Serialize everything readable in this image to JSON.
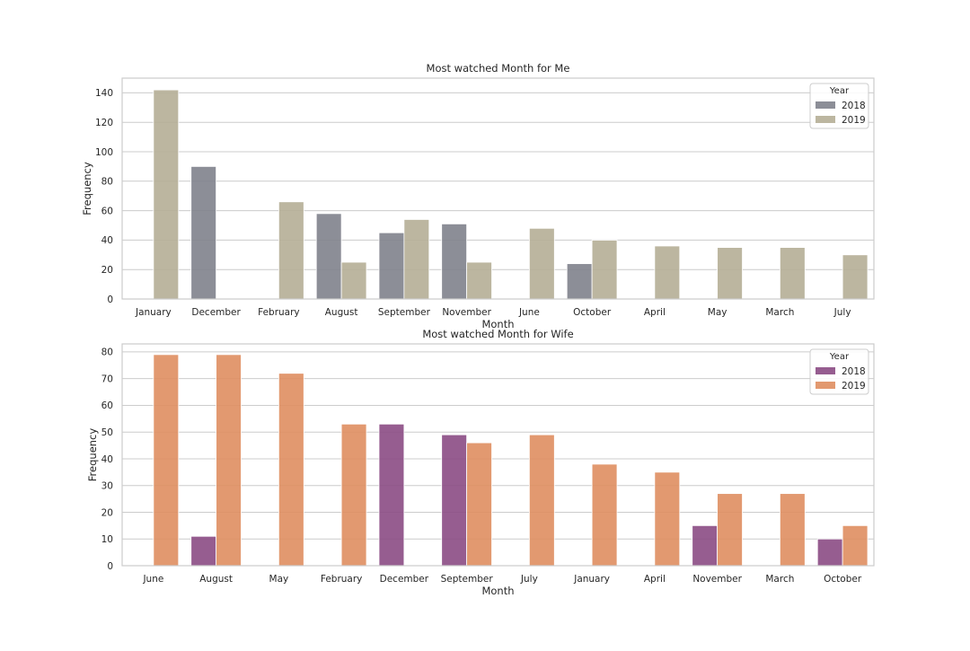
{
  "chart_data": [
    {
      "type": "bar",
      "title": "Most watched Month for Me",
      "xlabel": "Month",
      "ylabel": "Frequency",
      "categories": [
        "January",
        "December",
        "February",
        "August",
        "September",
        "November",
        "June",
        "October",
        "April",
        "May",
        "March",
        "July"
      ],
      "series": [
        {
          "name": "2018",
          "color": "#7f828c",
          "values": [
            0,
            90,
            0,
            58,
            45,
            51,
            0,
            24,
            0,
            0,
            0,
            0
          ]
        },
        {
          "name": "2019",
          "color": "#b5ae96",
          "values": [
            142,
            0,
            66,
            25,
            54,
            25,
            48,
            40,
            36,
            35,
            35,
            30
          ]
        }
      ],
      "ylim": [
        0,
        150
      ],
      "yticks": [
        0,
        20,
        40,
        60,
        80,
        100,
        120,
        140
      ],
      "legend": {
        "title": "Year",
        "placement": "top-right"
      },
      "grid": true
    },
    {
      "type": "bar",
      "title": "Most watched Month for Wife",
      "xlabel": "Month",
      "ylabel": "Frequency",
      "categories": [
        "June",
        "August",
        "May",
        "February",
        "December",
        "September",
        "July",
        "January",
        "April",
        "November",
        "March",
        "October"
      ],
      "series": [
        {
          "name": "2018",
          "color": "#8b4b84",
          "values": [
            0,
            11,
            0,
            0,
            53,
            49,
            0,
            0,
            0,
            15,
            0,
            10
          ]
        },
        {
          "name": "2019",
          "color": "#df8e61",
          "values": [
            79,
            79,
            72,
            53,
            0,
            46,
            49,
            38,
            35,
            27,
            27,
            15
          ]
        }
      ],
      "ylim": [
        0,
        83
      ],
      "yticks": [
        0,
        10,
        20,
        30,
        40,
        50,
        60,
        70,
        80
      ],
      "legend": {
        "title": "Year",
        "placement": "top-right"
      },
      "grid": true
    }
  ]
}
